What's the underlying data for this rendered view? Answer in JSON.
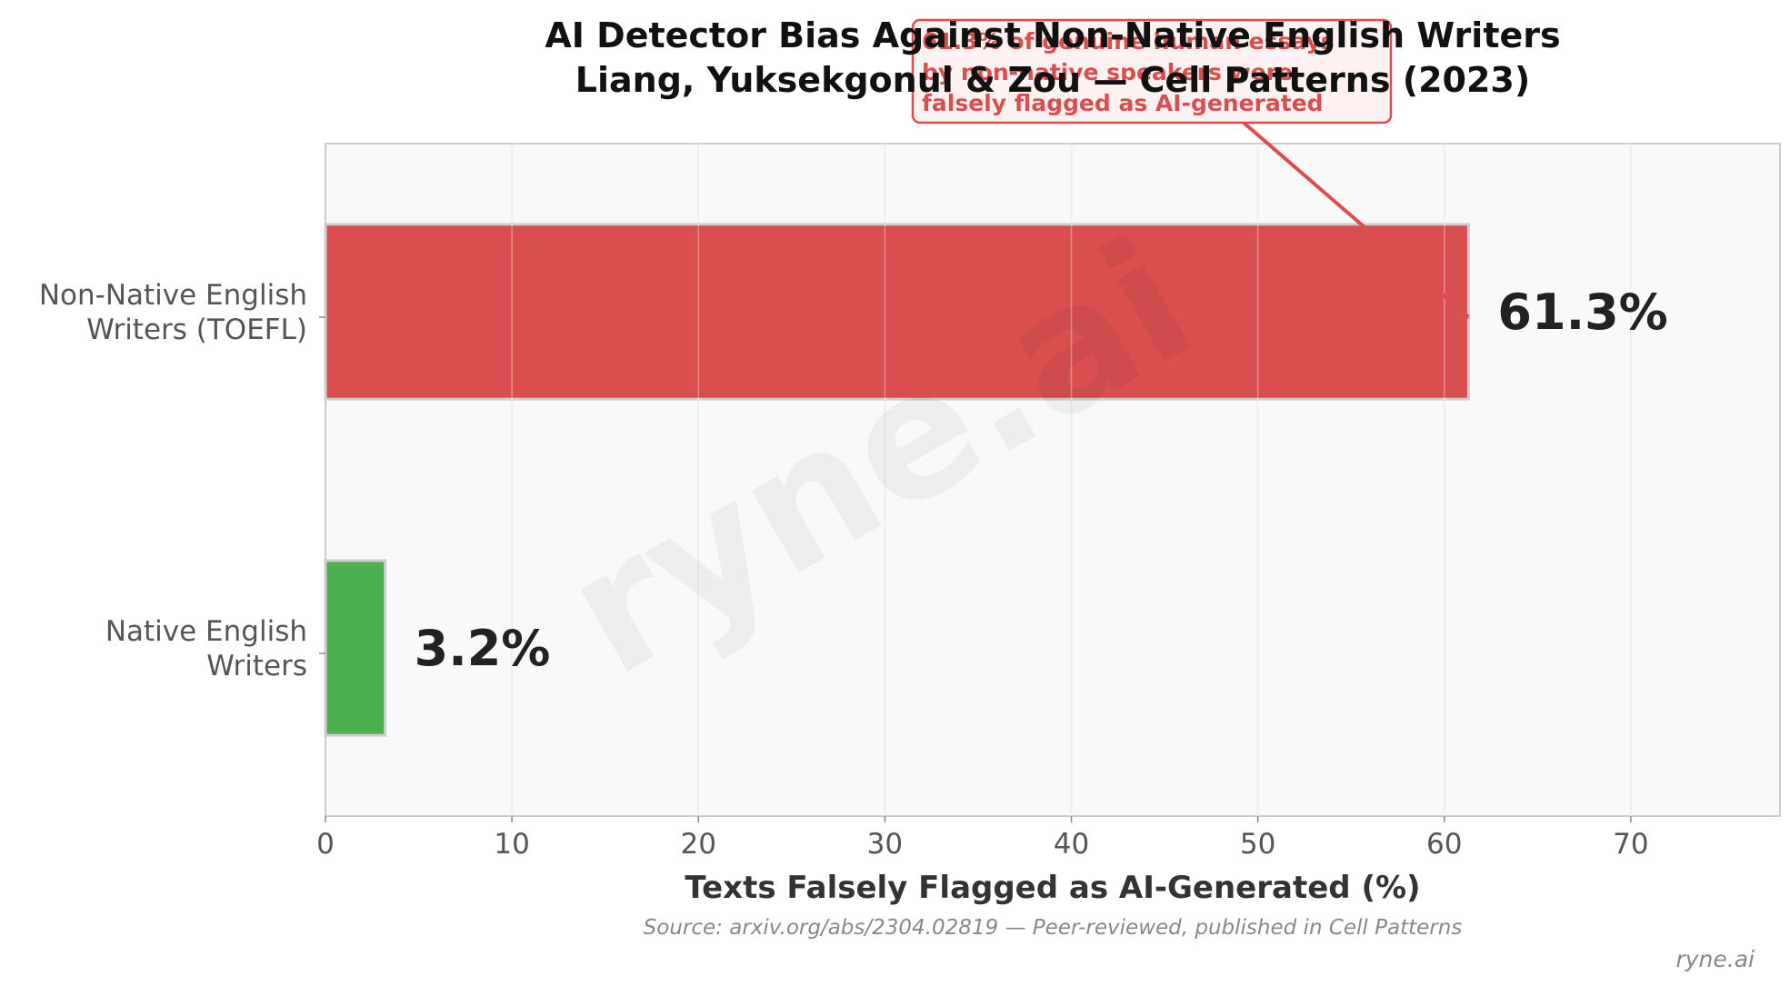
{
  "chart_data": {
    "type": "bar",
    "orientation": "horizontal",
    "title_lines": [
      "AI Detector Bias Against Non-Native English Writers",
      "Liang, Yuksekgonul & Zou — Cell Patterns (2023)"
    ],
    "categories": [
      {
        "lines": [
          "Non-Native English",
          "Writers (TOEFL)"
        ]
      },
      {
        "lines": [
          "Native English",
          "Writers"
        ]
      }
    ],
    "values": [
      61.3,
      3.2
    ],
    "value_labels": [
      "61.3%",
      "3.2%"
    ],
    "bar_colors": [
      "#d94f50",
      "#4caf50"
    ],
    "xlabel": "Texts Falsely Flagged as AI-Generated (%)",
    "xlim": [
      0,
      78
    ],
    "xticks": [
      0,
      10,
      20,
      30,
      40,
      50,
      60,
      70
    ],
    "grid": true,
    "annotation": {
      "lines": [
        "61.3% of genuine human essays",
        "by non-native speakers were",
        "falsely flagged as AI-generated"
      ],
      "target_value": 61.3,
      "target_category": 0
    },
    "source": "Source: arxiv.org/abs/2304.02819 — Peer-reviewed, published in Cell Patterns",
    "credit": "ryne.ai",
    "watermark": "ryne.ai"
  }
}
